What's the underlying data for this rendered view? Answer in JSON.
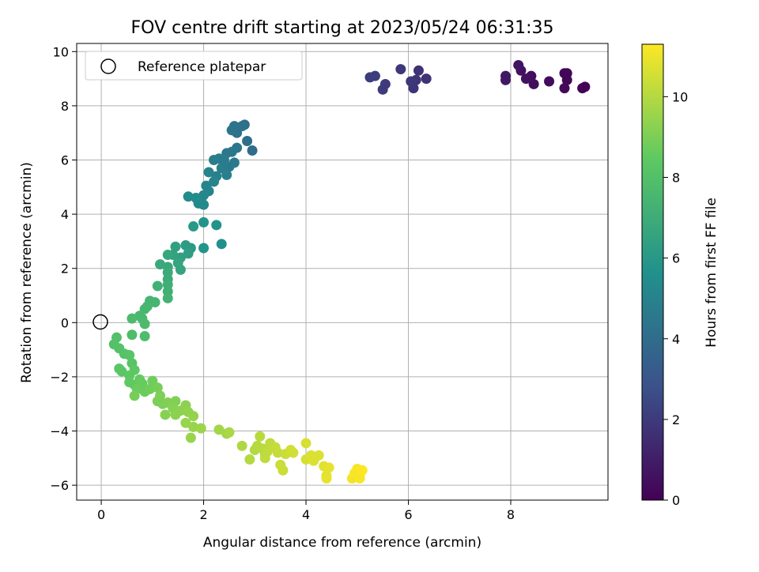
{
  "chart_data": {
    "type": "scatter",
    "title": "FOV centre drift starting at 2023/05/24 06:31:35",
    "xlabel": "Angular distance from reference (arcmin)",
    "ylabel": "Rotation from reference (arcmin)",
    "xlim": [
      -0.48,
      9.9
    ],
    "ylim": [
      -6.55,
      10.3
    ],
    "xticks": [
      0,
      2,
      4,
      6,
      8
    ],
    "yticks": [
      -6,
      -4,
      -2,
      0,
      2,
      4,
      6,
      8,
      10
    ],
    "grid": true,
    "legend": {
      "placement": "top-left",
      "label": "Reference platepar"
    },
    "reference_point": {
      "x": 0,
      "y": 0
    },
    "colorbar": {
      "label": "Hours from first FF file",
      "colormap": "viridis",
      "range": [
        0,
        11.3
      ],
      "ticks": [
        0,
        2,
        4,
        6,
        8,
        10
      ]
    },
    "series": [
      {
        "points": [
          {
            "x": 9.4,
            "y": 8.65,
            "t": 0.1
          },
          {
            "x": 9.45,
            "y": 8.7,
            "t": 0.1
          },
          {
            "x": 9.1,
            "y": 8.95,
            "t": 0.2
          },
          {
            "x": 9.05,
            "y": 8.65,
            "t": 0.3
          },
          {
            "x": 9.05,
            "y": 9.2,
            "t": 0.2
          },
          {
            "x": 9.1,
            "y": 9.2,
            "t": 0.2
          },
          {
            "x": 8.75,
            "y": 8.9,
            "t": 0.4
          },
          {
            "x": 8.45,
            "y": 8.8,
            "t": 0.5
          },
          {
            "x": 8.4,
            "y": 9.1,
            "t": 0.5
          },
          {
            "x": 8.3,
            "y": 9.0,
            "t": 0.6
          },
          {
            "x": 8.2,
            "y": 9.3,
            "t": 0.6
          },
          {
            "x": 8.15,
            "y": 9.5,
            "t": 0.7
          },
          {
            "x": 7.9,
            "y": 9.1,
            "t": 0.8
          },
          {
            "x": 7.9,
            "y": 8.95,
            "t": 0.8
          },
          {
            "x": 6.35,
            "y": 9.0,
            "t": 1.7
          },
          {
            "x": 6.2,
            "y": 9.3,
            "t": 1.7
          },
          {
            "x": 6.15,
            "y": 8.95,
            "t": 1.8
          },
          {
            "x": 6.1,
            "y": 8.65,
            "t": 1.8
          },
          {
            "x": 6.05,
            "y": 8.9,
            "t": 1.9
          },
          {
            "x": 5.85,
            "y": 9.35,
            "t": 1.9
          },
          {
            "x": 5.55,
            "y": 8.8,
            "t": 2.0
          },
          {
            "x": 5.5,
            "y": 8.6,
            "t": 2.0
          },
          {
            "x": 5.35,
            "y": 9.1,
            "t": 2.1
          },
          {
            "x": 5.25,
            "y": 9.05,
            "t": 2.1
          },
          {
            "x": 2.95,
            "y": 6.35,
            "t": 4.0
          },
          {
            "x": 2.85,
            "y": 6.7,
            "t": 4.1
          },
          {
            "x": 2.8,
            "y": 7.3,
            "t": 4.1
          },
          {
            "x": 2.75,
            "y": 7.25,
            "t": 4.2
          },
          {
            "x": 2.65,
            "y": 7.0,
            "t": 4.2
          },
          {
            "x": 2.6,
            "y": 7.25,
            "t": 4.3
          },
          {
            "x": 2.55,
            "y": 7.1,
            "t": 4.3
          },
          {
            "x": 2.65,
            "y": 6.45,
            "t": 4.4
          },
          {
            "x": 2.55,
            "y": 6.3,
            "t": 4.5
          },
          {
            "x": 2.45,
            "y": 6.25,
            "t": 4.5
          },
          {
            "x": 2.6,
            "y": 5.9,
            "t": 4.6
          },
          {
            "x": 2.5,
            "y": 5.75,
            "t": 4.6
          },
          {
            "x": 2.4,
            "y": 6.0,
            "t": 4.7
          },
          {
            "x": 2.3,
            "y": 6.05,
            "t": 4.7
          },
          {
            "x": 2.2,
            "y": 6.0,
            "t": 4.8
          },
          {
            "x": 2.35,
            "y": 5.7,
            "t": 4.8
          },
          {
            "x": 2.45,
            "y": 5.45,
            "t": 4.9
          },
          {
            "x": 2.25,
            "y": 5.4,
            "t": 4.9
          },
          {
            "x": 2.1,
            "y": 5.55,
            "t": 5.0
          },
          {
            "x": 2.2,
            "y": 5.2,
            "t": 5.0
          },
          {
            "x": 2.05,
            "y": 5.05,
            "t": 5.1
          },
          {
            "x": 2.1,
            "y": 4.85,
            "t": 5.1
          },
          {
            "x": 2.0,
            "y": 4.7,
            "t": 5.2
          },
          {
            "x": 1.95,
            "y": 4.55,
            "t": 5.2
          },
          {
            "x": 2.0,
            "y": 4.35,
            "t": 5.3
          },
          {
            "x": 1.9,
            "y": 4.4,
            "t": 5.3
          },
          {
            "x": 1.85,
            "y": 4.6,
            "t": 5.4
          },
          {
            "x": 1.7,
            "y": 4.65,
            "t": 5.4
          },
          {
            "x": 2.35,
            "y": 2.9,
            "t": 5.6
          },
          {
            "x": 2.25,
            "y": 3.6,
            "t": 5.7
          },
          {
            "x": 2.0,
            "y": 3.7,
            "t": 5.8
          },
          {
            "x": 2.0,
            "y": 2.75,
            "t": 5.8
          },
          {
            "x": 1.8,
            "y": 3.55,
            "t": 6.0
          },
          {
            "x": 1.75,
            "y": 2.75,
            "t": 6.1
          },
          {
            "x": 1.65,
            "y": 2.85,
            "t": 6.2
          },
          {
            "x": 1.7,
            "y": 2.55,
            "t": 6.3
          },
          {
            "x": 1.55,
            "y": 2.4,
            "t": 6.4
          },
          {
            "x": 1.45,
            "y": 2.8,
            "t": 6.4
          },
          {
            "x": 1.4,
            "y": 2.5,
            "t": 6.5
          },
          {
            "x": 1.5,
            "y": 2.2,
            "t": 6.6
          },
          {
            "x": 1.55,
            "y": 1.95,
            "t": 6.6
          },
          {
            "x": 1.3,
            "y": 2.5,
            "t": 6.7
          },
          {
            "x": 1.15,
            "y": 2.15,
            "t": 6.8
          },
          {
            "x": 1.3,
            "y": 2.05,
            "t": 6.8
          },
          {
            "x": 1.3,
            "y": 1.85,
            "t": 6.9
          },
          {
            "x": 1.3,
            "y": 1.6,
            "t": 7.0
          },
          {
            "x": 1.3,
            "y": 1.4,
            "t": 7.1
          },
          {
            "x": 1.1,
            "y": 1.35,
            "t": 7.2
          },
          {
            "x": 1.3,
            "y": 1.15,
            "t": 7.2
          },
          {
            "x": 1.3,
            "y": 0.9,
            "t": 7.3
          },
          {
            "x": 1.05,
            "y": 0.75,
            "t": 7.4
          },
          {
            "x": 0.95,
            "y": 0.8,
            "t": 7.4
          },
          {
            "x": 0.9,
            "y": 0.6,
            "t": 7.5
          },
          {
            "x": 0.85,
            "y": 0.5,
            "t": 7.5
          },
          {
            "x": 0.8,
            "y": 0.15,
            "t": 7.6
          },
          {
            "x": 0.75,
            "y": 0.25,
            "t": 7.6
          },
          {
            "x": 0.6,
            "y": 0.15,
            "t": 7.7
          },
          {
            "x": 0.85,
            "y": -0.05,
            "t": 7.7
          },
          {
            "x": 0.6,
            "y": -0.45,
            "t": 7.8
          },
          {
            "x": 0.85,
            "y": -0.5,
            "t": 7.8
          },
          {
            "x": 0.3,
            "y": -0.55,
            "t": 8.0
          },
          {
            "x": 0.25,
            "y": -0.8,
            "t": 8.0
          },
          {
            "x": 0.35,
            "y": -0.95,
            "t": 8.1
          },
          {
            "x": 0.45,
            "y": -1.15,
            "t": 8.1
          },
          {
            "x": 0.55,
            "y": -1.2,
            "t": 8.2
          },
          {
            "x": 0.6,
            "y": -1.5,
            "t": 8.2
          },
          {
            "x": 0.35,
            "y": -1.7,
            "t": 8.3
          },
          {
            "x": 0.4,
            "y": -1.8,
            "t": 8.3
          },
          {
            "x": 0.55,
            "y": -1.95,
            "t": 8.4
          },
          {
            "x": 0.65,
            "y": -1.75,
            "t": 8.4
          },
          {
            "x": 0.55,
            "y": -2.2,
            "t": 8.5
          },
          {
            "x": 0.65,
            "y": -2.3,
            "t": 8.5
          },
          {
            "x": 0.75,
            "y": -2.1,
            "t": 8.6
          },
          {
            "x": 0.8,
            "y": -2.25,
            "t": 8.6
          },
          {
            "x": 0.7,
            "y": -2.45,
            "t": 8.7
          },
          {
            "x": 0.85,
            "y": -2.55,
            "t": 8.7
          },
          {
            "x": 0.95,
            "y": -2.45,
            "t": 8.8
          },
          {
            "x": 1.0,
            "y": -2.15,
            "t": 8.8
          },
          {
            "x": 0.65,
            "y": -2.7,
            "t": 8.9
          },
          {
            "x": 1.1,
            "y": -2.4,
            "t": 8.9
          },
          {
            "x": 1.15,
            "y": -2.7,
            "t": 9.0
          },
          {
            "x": 1.1,
            "y": -2.9,
            "t": 9.0
          },
          {
            "x": 1.2,
            "y": -3.0,
            "t": 9.0
          },
          {
            "x": 1.3,
            "y": -2.95,
            "t": 9.1
          },
          {
            "x": 1.45,
            "y": -2.9,
            "t": 9.1
          },
          {
            "x": 1.4,
            "y": -3.15,
            "t": 9.2
          },
          {
            "x": 1.25,
            "y": -3.4,
            "t": 9.2
          },
          {
            "x": 1.45,
            "y": -3.4,
            "t": 9.3
          },
          {
            "x": 1.55,
            "y": -3.25,
            "t": 9.3
          },
          {
            "x": 1.65,
            "y": -3.05,
            "t": 9.3
          },
          {
            "x": 1.7,
            "y": -3.3,
            "t": 9.4
          },
          {
            "x": 1.8,
            "y": -3.45,
            "t": 9.4
          },
          {
            "x": 1.65,
            "y": -3.7,
            "t": 9.5
          },
          {
            "x": 1.8,
            "y": -3.85,
            "t": 9.5
          },
          {
            "x": 1.75,
            "y": -4.25,
            "t": 9.5
          },
          {
            "x": 1.95,
            "y": -3.9,
            "t": 9.6
          },
          {
            "x": 2.3,
            "y": -3.95,
            "t": 9.7
          },
          {
            "x": 2.45,
            "y": -4.1,
            "t": 9.7
          },
          {
            "x": 2.5,
            "y": -4.05,
            "t": 9.8
          },
          {
            "x": 2.75,
            "y": -4.55,
            "t": 9.9
          },
          {
            "x": 2.9,
            "y": -5.05,
            "t": 10.0
          },
          {
            "x": 3.0,
            "y": -4.7,
            "t": 10.0
          },
          {
            "x": 3.05,
            "y": -4.55,
            "t": 10.0
          },
          {
            "x": 3.1,
            "y": -4.2,
            "t": 10.1
          },
          {
            "x": 3.15,
            "y": -4.65,
            "t": 10.1
          },
          {
            "x": 3.2,
            "y": -4.85,
            "t": 10.1
          },
          {
            "x": 3.2,
            "y": -5.0,
            "t": 10.2
          },
          {
            "x": 3.25,
            "y": -4.75,
            "t": 10.2
          },
          {
            "x": 3.3,
            "y": -4.45,
            "t": 10.2
          },
          {
            "x": 3.4,
            "y": -4.6,
            "t": 10.3
          },
          {
            "x": 3.45,
            "y": -4.8,
            "t": 10.3
          },
          {
            "x": 3.5,
            "y": -5.25,
            "t": 10.4
          },
          {
            "x": 3.55,
            "y": -5.45,
            "t": 10.4
          },
          {
            "x": 3.6,
            "y": -4.85,
            "t": 10.4
          },
          {
            "x": 3.7,
            "y": -4.7,
            "t": 10.5
          },
          {
            "x": 3.75,
            "y": -4.8,
            "t": 10.5
          },
          {
            "x": 4.0,
            "y": -4.45,
            "t": 10.6
          },
          {
            "x": 4.0,
            "y": -5.05,
            "t": 10.6
          },
          {
            "x": 4.1,
            "y": -4.9,
            "t": 10.7
          },
          {
            "x": 4.15,
            "y": -5.1,
            "t": 10.7
          },
          {
            "x": 4.25,
            "y": -4.9,
            "t": 10.7
          },
          {
            "x": 4.35,
            "y": -5.3,
            "t": 10.8
          },
          {
            "x": 4.4,
            "y": -5.65,
            "t": 10.8
          },
          {
            "x": 4.4,
            "y": -5.75,
            "t": 10.9
          },
          {
            "x": 4.45,
            "y": -5.35,
            "t": 10.9
          },
          {
            "x": 4.9,
            "y": -5.75,
            "t": 11.1
          },
          {
            "x": 5.0,
            "y": -5.4,
            "t": 11.2
          },
          {
            "x": 5.05,
            "y": -5.6,
            "t": 11.2
          },
          {
            "x": 5.05,
            "y": -5.75,
            "t": 11.2
          },
          {
            "x": 4.95,
            "y": -5.55,
            "t": 11.2
          },
          {
            "x": 5.1,
            "y": -5.45,
            "t": 11.3
          }
        ]
      }
    ]
  }
}
